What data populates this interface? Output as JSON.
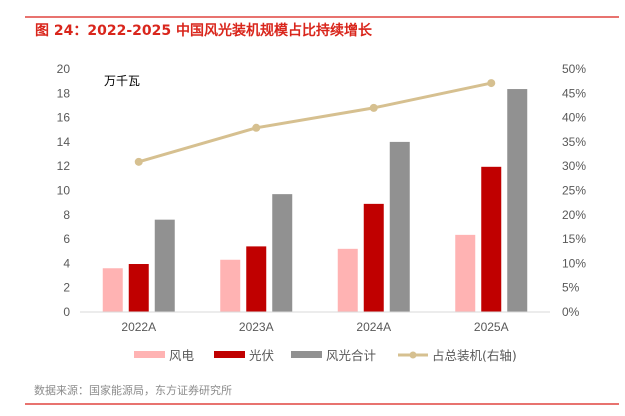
{
  "header": {
    "title": "图 24：2022-2025 中国风光装机规模占比持续增长"
  },
  "footer": {
    "source": "数据来源：国家能源局，东方证券研究所"
  },
  "chart_data": {
    "type": "bar",
    "title": "图 24：2022-2025 中国风光装机规模占比持续增长",
    "unit_label": "万千瓦",
    "categories": [
      "2022A",
      "2023A",
      "2024A",
      "2025A"
    ],
    "series": [
      {
        "name": "风电",
        "type": "bar",
        "axis": "left",
        "color": "#ffb3b3",
        "values": [
          3.6,
          4.3,
          5.2,
          6.35
        ]
      },
      {
        "name": "光伏",
        "type": "bar",
        "axis": "left",
        "color": "#c00000",
        "values": [
          3.95,
          5.4,
          8.9,
          11.95
        ]
      },
      {
        "name": "风光合计",
        "type": "bar",
        "axis": "left",
        "color": "#919191",
        "values": [
          7.6,
          9.7,
          14.0,
          18.35
        ]
      },
      {
        "name": "占总装机(右轴)",
        "type": "line",
        "axis": "right",
        "color": "#d6c090",
        "values": [
          0.309,
          0.379,
          0.42,
          0.471
        ]
      }
    ],
    "y_left": {
      "min": 0,
      "max": 20,
      "step": 2,
      "ticks": [
        "0",
        "2",
        "4",
        "6",
        "8",
        "10",
        "12",
        "14",
        "16",
        "18",
        "20"
      ]
    },
    "y_right": {
      "min": 0,
      "max": 0.5,
      "step": 0.05,
      "ticks": [
        "0%",
        "5%",
        "10%",
        "15%",
        "20%",
        "25%",
        "30%",
        "35%",
        "40%",
        "45%",
        "50%"
      ]
    },
    "xlabel": "",
    "ylabel": "万千瓦",
    "grid": false,
    "legend": {
      "placement": "bottom",
      "entries": [
        "风电",
        "光伏",
        "风光合计",
        "占总装机(右轴)"
      ]
    }
  }
}
